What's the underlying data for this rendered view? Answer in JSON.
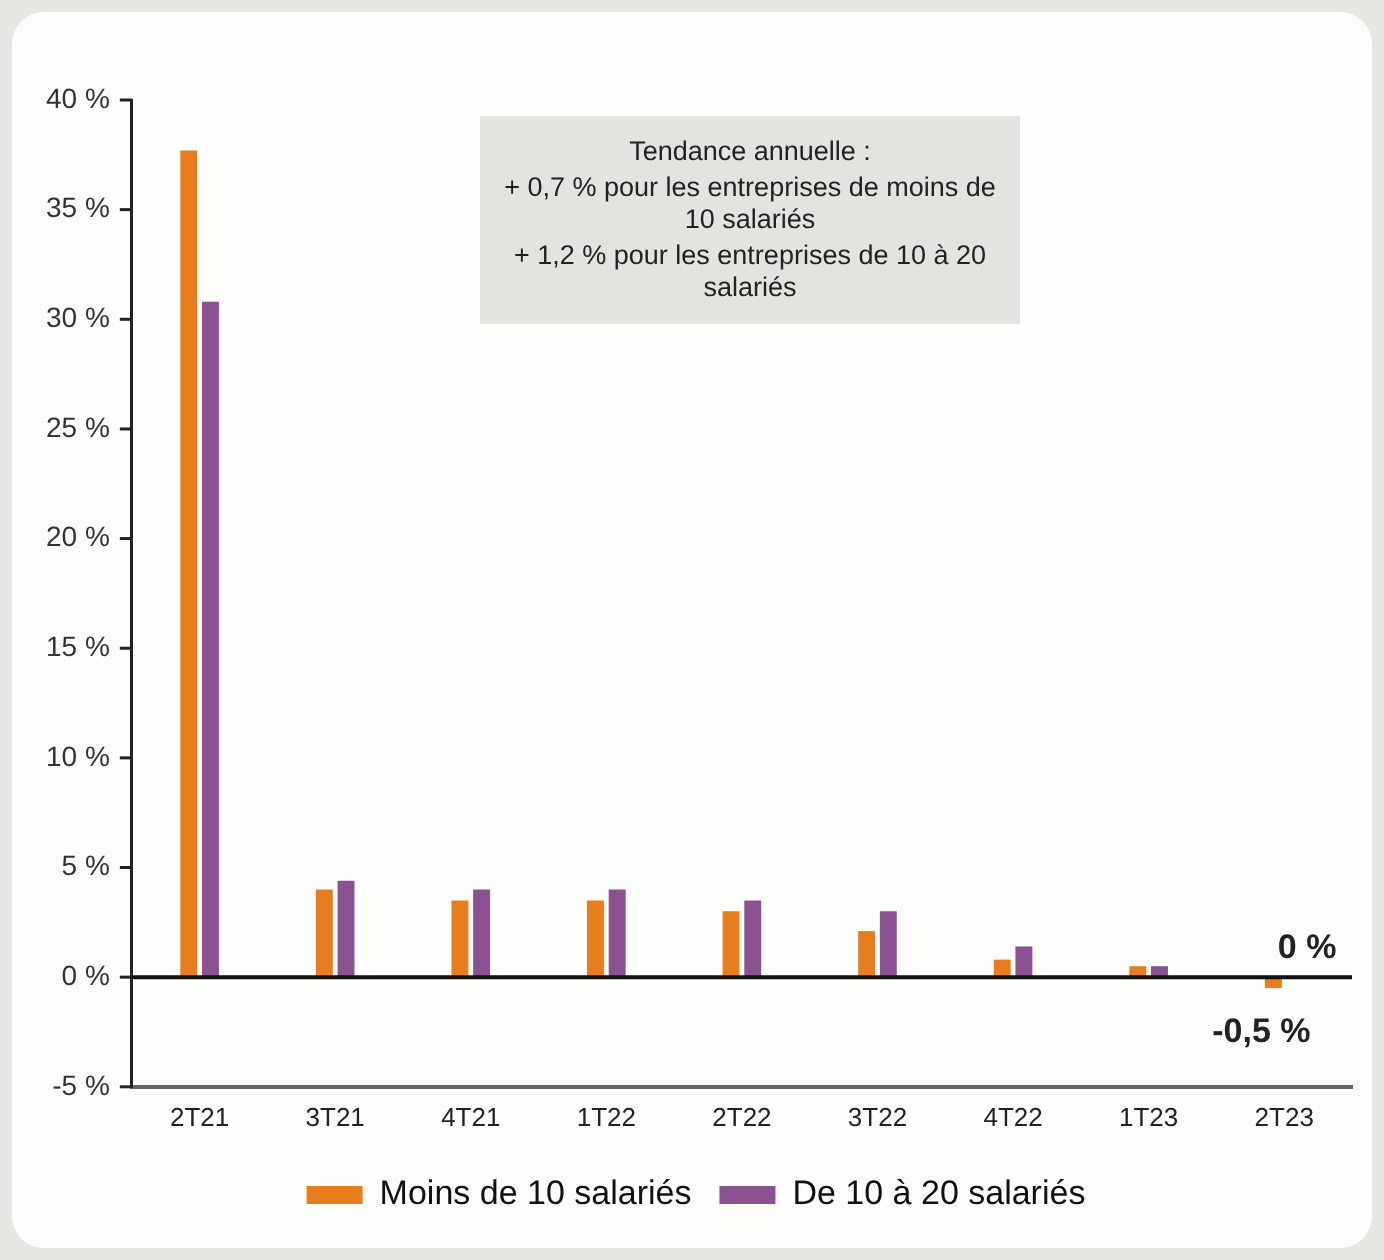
{
  "chart_data": {
    "type": "bar",
    "categories": [
      "2T21",
      "3T21",
      "4T21",
      "1T22",
      "2T22",
      "3T22",
      "4T22",
      "1T23",
      "2T23"
    ],
    "series": [
      {
        "name": "Moins de 10 salariés",
        "color": "#e87d1e",
        "values": [
          37.7,
          4.0,
          3.5,
          3.5,
          3.0,
          2.1,
          0.8,
          0.5,
          -0.5
        ],
        "value_labels": [
          null,
          null,
          null,
          null,
          null,
          null,
          null,
          null,
          "-0,5 %"
        ]
      },
      {
        "name": "De 10 à 20 salariés",
        "color": "#8b5193",
        "values": [
          30.8,
          4.4,
          4.0,
          4.0,
          3.5,
          3.0,
          1.4,
          0.5,
          0
        ],
        "value_labels": [
          null,
          null,
          null,
          null,
          null,
          null,
          null,
          null,
          "0 %"
        ]
      }
    ],
    "ylim": [
      -5,
      40
    ],
    "yticks": [
      {
        "value": -5,
        "label": "-5 %"
      },
      {
        "value": 0,
        "label": "0 %"
      },
      {
        "value": 5,
        "label": "5 %"
      },
      {
        "value": 10,
        "label": "10 %"
      },
      {
        "value": 15,
        "label": "15 %"
      },
      {
        "value": 20,
        "label": "20 %"
      },
      {
        "value": 25,
        "label": "25 %"
      },
      {
        "value": 30,
        "label": "30 %"
      },
      {
        "value": 35,
        "label": "35 %"
      },
      {
        "value": 40,
        "label": "40 %"
      }
    ],
    "grid": false,
    "ref_lines": [
      {
        "axis": "y",
        "value": 0,
        "color": "#111111"
      }
    ],
    "legend": "bottom",
    "annotations": [
      "Tendance annuelle :",
      "+ 0,7 % pour les entreprises de moins de 10 salariés",
      "+ 1,2 % pour les entreprises de 10 à 20 salariés"
    ]
  }
}
